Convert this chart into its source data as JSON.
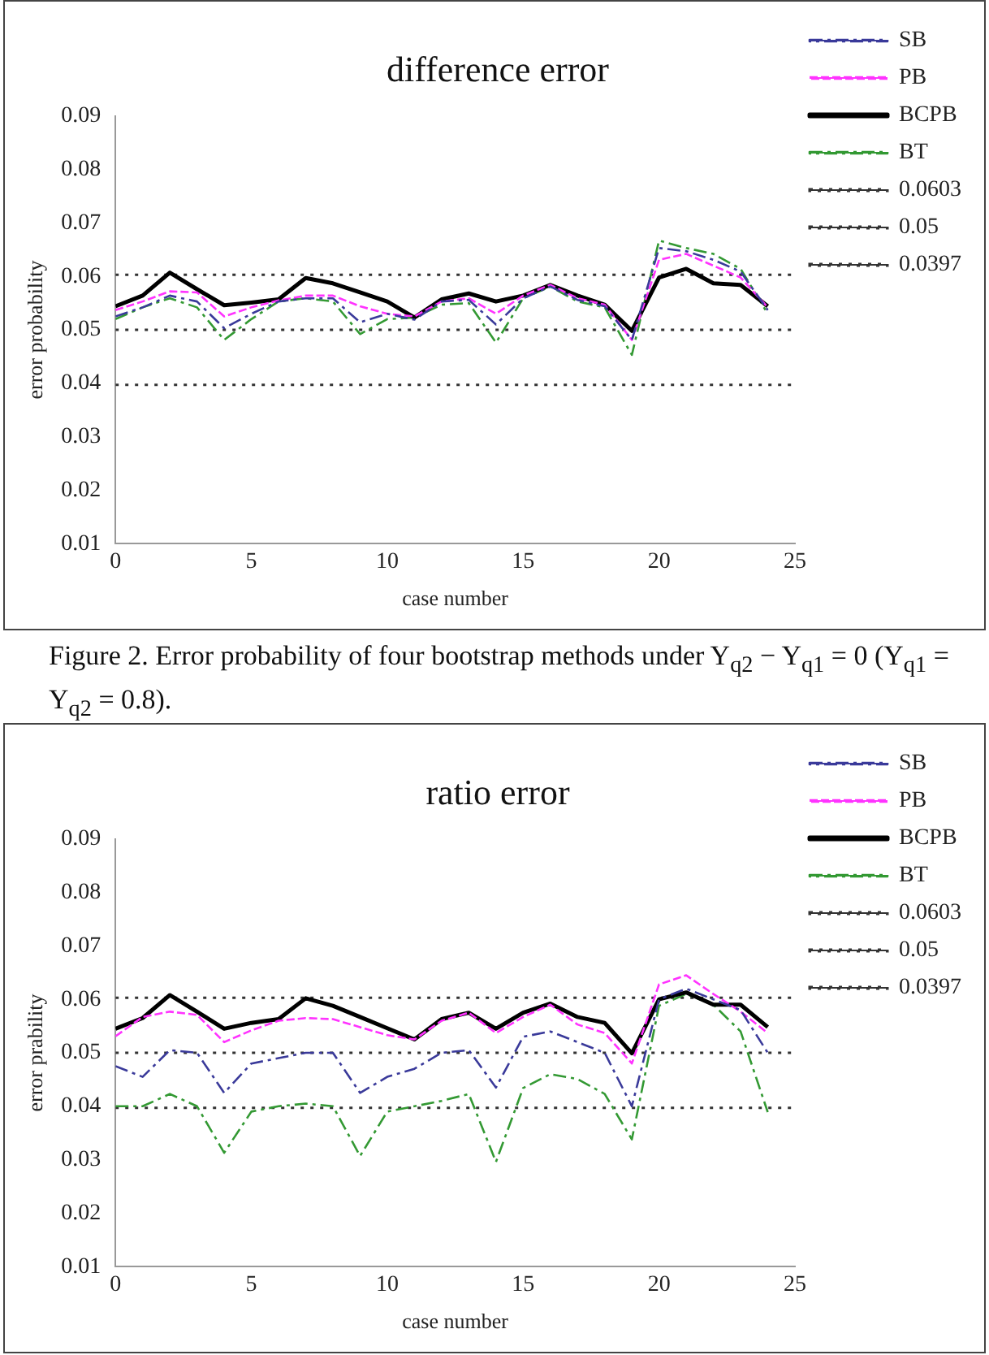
{
  "chart_data": [
    {
      "type": "line",
      "title": "difference error",
      "xlabel": "case number",
      "ylabel": "error probability",
      "x": [
        0,
        1,
        2,
        3,
        4,
        5,
        6,
        7,
        8,
        9,
        10,
        11,
        12,
        13,
        14,
        15,
        16,
        17,
        18,
        19,
        20,
        21,
        22,
        23,
        24
      ],
      "xlim": [
        0,
        25
      ],
      "xticks": [
        0,
        5,
        10,
        15,
        20,
        25
      ],
      "ylim": [
        0.01,
        0.09
      ],
      "yticks": [
        0.01,
        0.02,
        0.03,
        0.04,
        0.05,
        0.06,
        0.07,
        0.08,
        0.09
      ],
      "grid": false,
      "legend": "top right",
      "marker": "none",
      "series": [
        {
          "name": "SB",
          "color": "#3a3a9a",
          "line_style": "dashdot",
          "values": [
            0.0525,
            0.0542,
            0.0564,
            0.0553,
            0.0503,
            0.053,
            0.0553,
            0.0559,
            0.0559,
            0.0514,
            0.053,
            0.0519,
            0.0553,
            0.0556,
            0.051,
            0.0559,
            0.0581,
            0.0556,
            0.0544,
            0.0481,
            0.0653,
            0.0647,
            0.0631,
            0.0609,
            0.0537
          ]
        },
        {
          "name": "PB",
          "color": "#ff33ff",
          "line_style": "dashed",
          "values": [
            0.0537,
            0.0553,
            0.0572,
            0.057,
            0.0525,
            0.0542,
            0.0555,
            0.0564,
            0.0564,
            0.0544,
            0.053,
            0.0525,
            0.0553,
            0.0559,
            0.053,
            0.0564,
            0.0584,
            0.0559,
            0.0547,
            0.0481,
            0.0631,
            0.0642,
            0.062,
            0.0598,
            0.0542
          ]
        },
        {
          "name": "BCPB",
          "color": "#000000",
          "line_style": "solid",
          "values": [
            0.0544,
            0.0564,
            0.0607,
            0.0576,
            0.0546,
            0.0551,
            0.0557,
            0.0597,
            0.0587,
            0.057,
            0.0553,
            0.0523,
            0.0557,
            0.0568,
            0.0553,
            0.0564,
            0.0584,
            0.0564,
            0.0547,
            0.0498,
            0.0598,
            0.0614,
            0.0587,
            0.0584,
            0.0544
          ]
        },
        {
          "name": "BT",
          "color": "#339933",
          "line_style": "dashdot",
          "values": [
            0.052,
            0.0542,
            0.0559,
            0.0542,
            0.0481,
            0.052,
            0.0553,
            0.0559,
            0.0553,
            0.0492,
            0.052,
            0.0523,
            0.0547,
            0.055,
            0.0476,
            0.0559,
            0.0581,
            0.0553,
            0.0542,
            0.0453,
            0.0667,
            0.0653,
            0.0642,
            0.0614,
            0.053
          ]
        }
      ],
      "ref_lines": [
        {
          "axis": "y",
          "value": 0.0603,
          "label": "0.0603",
          "color": "#333333",
          "line_style": "dotted"
        },
        {
          "axis": "y",
          "value": 0.05,
          "label": "0.05",
          "color": "#333333",
          "line_style": "dotted"
        },
        {
          "axis": "y",
          "value": 0.0397,
          "label": "0.0397",
          "color": "#333333",
          "line_style": "dotted"
        }
      ],
      "annotations": [
        "Figure 2. Error probability of four bootstrap methods under  Y$_{q2}$ − Y$_{q1}$ = 0 (Y$_{q1}$ = Y$_{q2}$ = 0.8)."
      ]
    },
    {
      "type": "line",
      "title": "ratio error",
      "xlabel": "case number",
      "ylabel": "error prability",
      "x": [
        0,
        1,
        2,
        3,
        4,
        5,
        6,
        7,
        8,
        9,
        10,
        11,
        12,
        13,
        14,
        15,
        16,
        17,
        18,
        19,
        20,
        21,
        22,
        23,
        24
      ],
      "xlim": [
        0,
        25
      ],
      "xticks": [
        0,
        5,
        10,
        15,
        20,
        25
      ],
      "ylim": [
        0.01,
        0.09
      ],
      "yticks": [
        0.01,
        0.02,
        0.03,
        0.04,
        0.05,
        0.06,
        0.07,
        0.08,
        0.09
      ],
      "grid": false,
      "legend": "top right",
      "marker": "none",
      "series": [
        {
          "name": "SB",
          "color": "#3a3a9a",
          "line_style": "dashdot",
          "values": [
            0.0475,
            0.0455,
            0.0505,
            0.05,
            0.0425,
            0.048,
            0.049,
            0.05,
            0.05,
            0.0425,
            0.0455,
            0.047,
            0.05,
            0.0505,
            0.0435,
            0.053,
            0.054,
            0.052,
            0.05,
            0.04,
            0.06,
            0.062,
            0.06,
            0.058,
            0.05
          ]
        },
        {
          "name": "PB",
          "color": "#ff33ff",
          "line_style": "dashed",
          "values": [
            0.0531,
            0.0567,
            0.0577,
            0.0571,
            0.052,
            0.0542,
            0.056,
            0.0565,
            0.0563,
            0.0548,
            0.0533,
            0.0525,
            0.056,
            0.0575,
            0.0537,
            0.0567,
            0.059,
            0.0553,
            0.0537,
            0.048,
            0.0628,
            0.0645,
            0.061,
            0.0577,
            0.0537
          ]
        },
        {
          "name": "BCPB",
          "color": "#000000",
          "line_style": "solid",
          "values": [
            0.0545,
            0.0565,
            0.0608,
            0.0577,
            0.0545,
            0.0556,
            0.0563,
            0.0602,
            0.0588,
            0.0567,
            0.0546,
            0.0525,
            0.0563,
            0.0575,
            0.0545,
            0.0575,
            0.0592,
            0.0567,
            0.0556,
            0.0499,
            0.06,
            0.0613,
            0.059,
            0.059,
            0.0548
          ]
        },
        {
          "name": "BT",
          "color": "#339933",
          "line_style": "dashdot",
          "values": [
            0.04,
            0.04,
            0.0423,
            0.04,
            0.0313,
            0.039,
            0.04,
            0.0405,
            0.04,
            0.0307,
            0.039,
            0.04,
            0.041,
            0.0423,
            0.0296,
            0.0434,
            0.046,
            0.0451,
            0.0423,
            0.0338,
            0.0588,
            0.061,
            0.059,
            0.054,
            0.0389
          ]
        }
      ],
      "ref_lines": [
        {
          "axis": "y",
          "value": 0.0603,
          "label": "0.0603",
          "color": "#333333",
          "line_style": "dotted"
        },
        {
          "axis": "y",
          "value": 0.05,
          "label": "0.05",
          "color": "#333333",
          "line_style": "dotted"
        },
        {
          "axis": "y",
          "value": 0.0397,
          "label": "0.0397",
          "color": "#333333",
          "line_style": "dotted"
        }
      ]
    }
  ]
}
